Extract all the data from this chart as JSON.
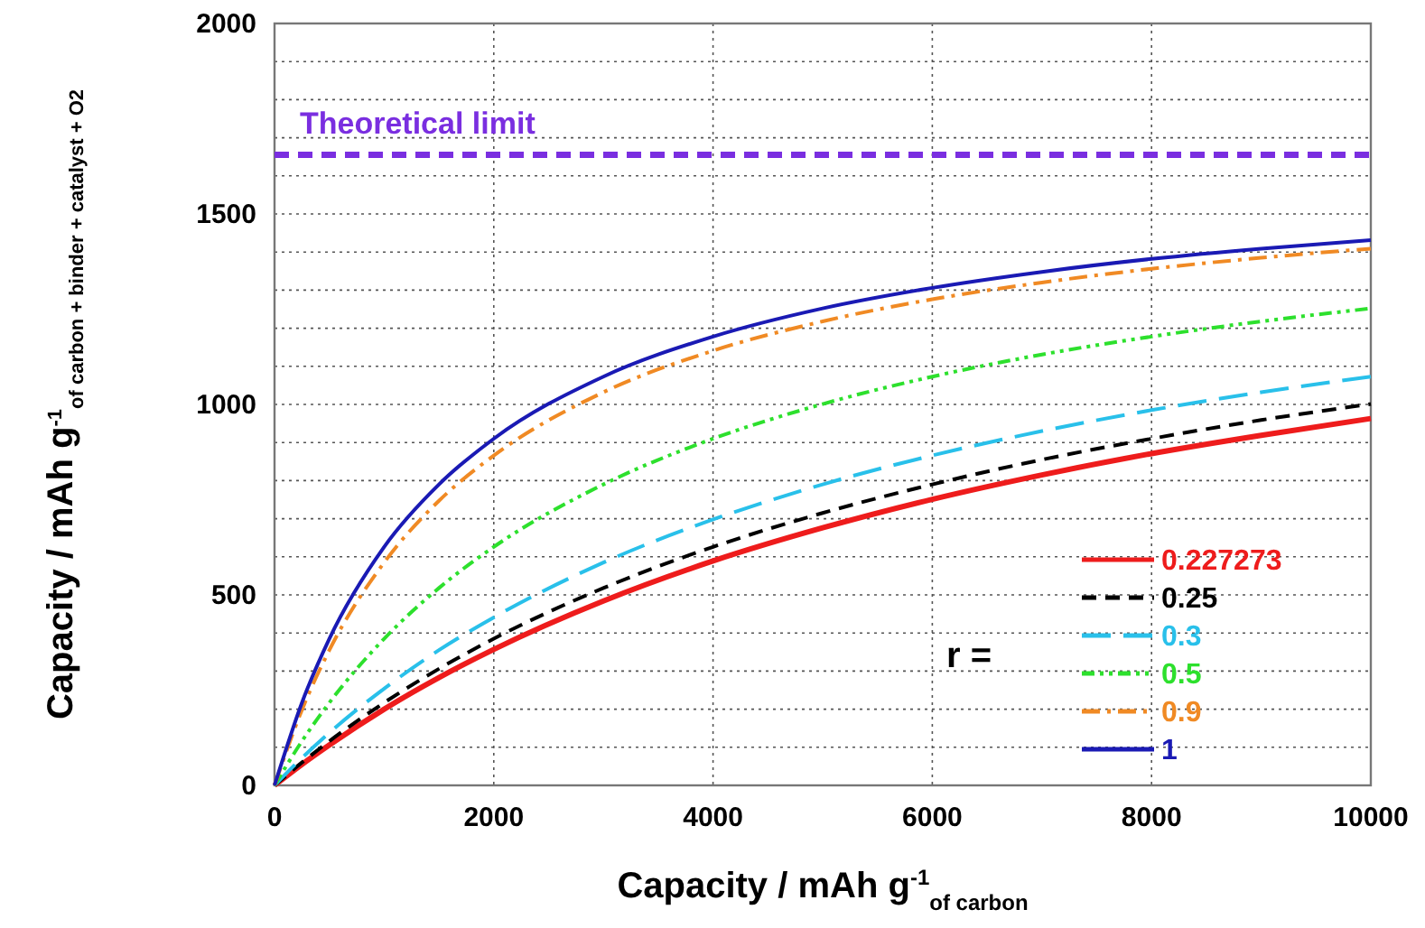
{
  "chart_data": {
    "type": "line",
    "xlabel": "Capacity / mAh g$^{-1}$$_{of carbon}$",
    "ylabel": "Capacity / mAh g$^{-1}$$_{of carbon + binder + catalyst + O2}$",
    "legend_title": "r =",
    "x": [
      0,
      250,
      500,
      1000,
      1500,
      2000,
      3000,
      4000,
      5000,
      6000,
      7000,
      8000,
      9000,
      10000
    ],
    "series": [
      {
        "name": "0.227273",
        "color": "#ee1c1c",
        "line_style": "solid",
        "values": [
          0,
          55,
          106,
          200,
          283,
          357,
          484,
          589,
          676,
          751,
          815,
          871,
          919,
          963
        ]
      },
      {
        "name": "0.25",
        "color": "#000000",
        "line_style": "dashed",
        "values": [
          0,
          60,
          116,
          217,
          306,
          385,
          518,
          626,
          715,
          790,
          855,
          910,
          959,
          1001
        ]
      },
      {
        "name": "0.3",
        "color": "#29c0ea",
        "line_style": "longdash",
        "values": [
          0,
          72,
          138,
          254,
          355,
          441,
          585,
          698,
          790,
          866,
          930,
          985,
          1032,
          1073
        ]
      },
      {
        "name": "0.5",
        "color": "#2de02d",
        "line_style": "dashdotdot",
        "values": [
          0,
          116,
          217,
          385,
          518,
          626,
          790,
          910,
          1001,
          1073,
          1131,
          1178,
          1218,
          1252
        ]
      },
      {
        "name": "0.9",
        "color": "#f08a24",
        "line_style": "dashdot",
        "values": [
          0,
          198,
          355,
          585,
          747,
          866,
          1032,
          1141,
          1218,
          1276,
          1320,
          1356,
          1385,
          1409
        ]
      },
      {
        "name": "1",
        "color": "#1a1ab4",
        "line_style": "solid",
        "values": [
          0,
          217,
          385,
          626,
          790,
          910,
          1073,
          1178,
          1252,
          1306,
          1348,
          1382,
          1409,
          1431
        ]
      }
    ],
    "xlim": [
      0,
      10000
    ],
    "xticks": [
      0,
      2000,
      4000,
      6000,
      8000,
      10000
    ],
    "ylim": [
      0,
      2000
    ],
    "yticks": [
      0,
      {
        "value": 100,
        "label": null
      },
      {
        "value": 200,
        "label": null
      },
      {
        "value": 300,
        "label": null
      },
      {
        "value": 400,
        "label": null
      },
      500,
      {
        "value": 600,
        "label": null
      },
      {
        "value": 700,
        "label": null
      },
      {
        "value": 800,
        "label": null
      },
      {
        "value": 900,
        "label": null
      },
      1000,
      {
        "value": 1100,
        "label": null
      },
      {
        "value": 1200,
        "label": null
      },
      {
        "value": 1300,
        "label": null
      },
      {
        "value": 1400,
        "label": null
      },
      1500,
      {
        "value": 1600,
        "label": null
      },
      {
        "value": 1700,
        "label": null
      },
      {
        "value": 1800,
        "label": null
      },
      {
        "value": 1900,
        "label": null
      },
      2000
    ],
    "ref_lines": [
      {
        "axis": "y",
        "value": 1655,
        "label": "Theoretical limit",
        "color": "#7a2ee0",
        "line_style": "dashed"
      }
    ],
    "grid": true,
    "legend": "bottom right"
  }
}
